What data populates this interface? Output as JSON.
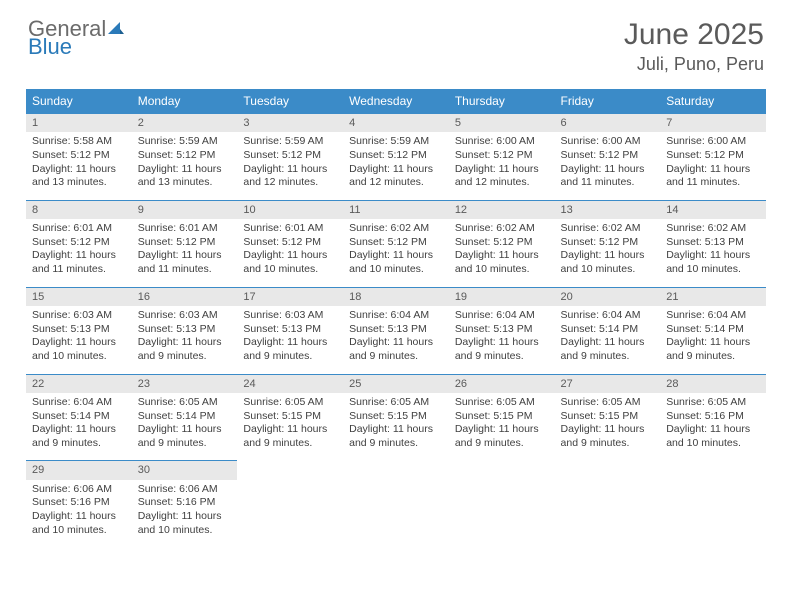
{
  "logo": {
    "text_general": "General",
    "text_blue": "Blue"
  },
  "header": {
    "title": "June 2025",
    "location": "Juli, Puno, Peru"
  },
  "colors": {
    "header_bg": "#3b8bc8",
    "header_text": "#ffffff",
    "daynum_bg": "#e8e8e8",
    "border": "#3b8bc8",
    "body_text": "#404040",
    "logo_gray": "#6b6b6b",
    "logo_blue": "#2a7ab9"
  },
  "daysOfWeek": [
    "Sunday",
    "Monday",
    "Tuesday",
    "Wednesday",
    "Thursday",
    "Friday",
    "Saturday"
  ],
  "days": [
    {
      "n": "1",
      "sunrise": "Sunrise: 5:58 AM",
      "sunset": "Sunset: 5:12 PM",
      "dl1": "Daylight: 11 hours",
      "dl2": "and 13 minutes."
    },
    {
      "n": "2",
      "sunrise": "Sunrise: 5:59 AM",
      "sunset": "Sunset: 5:12 PM",
      "dl1": "Daylight: 11 hours",
      "dl2": "and 13 minutes."
    },
    {
      "n": "3",
      "sunrise": "Sunrise: 5:59 AM",
      "sunset": "Sunset: 5:12 PM",
      "dl1": "Daylight: 11 hours",
      "dl2": "and 12 minutes."
    },
    {
      "n": "4",
      "sunrise": "Sunrise: 5:59 AM",
      "sunset": "Sunset: 5:12 PM",
      "dl1": "Daylight: 11 hours",
      "dl2": "and 12 minutes."
    },
    {
      "n": "5",
      "sunrise": "Sunrise: 6:00 AM",
      "sunset": "Sunset: 5:12 PM",
      "dl1": "Daylight: 11 hours",
      "dl2": "and 12 minutes."
    },
    {
      "n": "6",
      "sunrise": "Sunrise: 6:00 AM",
      "sunset": "Sunset: 5:12 PM",
      "dl1": "Daylight: 11 hours",
      "dl2": "and 11 minutes."
    },
    {
      "n": "7",
      "sunrise": "Sunrise: 6:00 AM",
      "sunset": "Sunset: 5:12 PM",
      "dl1": "Daylight: 11 hours",
      "dl2": "and 11 minutes."
    },
    {
      "n": "8",
      "sunrise": "Sunrise: 6:01 AM",
      "sunset": "Sunset: 5:12 PM",
      "dl1": "Daylight: 11 hours",
      "dl2": "and 11 minutes."
    },
    {
      "n": "9",
      "sunrise": "Sunrise: 6:01 AM",
      "sunset": "Sunset: 5:12 PM",
      "dl1": "Daylight: 11 hours",
      "dl2": "and 11 minutes."
    },
    {
      "n": "10",
      "sunrise": "Sunrise: 6:01 AM",
      "sunset": "Sunset: 5:12 PM",
      "dl1": "Daylight: 11 hours",
      "dl2": "and 10 minutes."
    },
    {
      "n": "11",
      "sunrise": "Sunrise: 6:02 AM",
      "sunset": "Sunset: 5:12 PM",
      "dl1": "Daylight: 11 hours",
      "dl2": "and 10 minutes."
    },
    {
      "n": "12",
      "sunrise": "Sunrise: 6:02 AM",
      "sunset": "Sunset: 5:12 PM",
      "dl1": "Daylight: 11 hours",
      "dl2": "and 10 minutes."
    },
    {
      "n": "13",
      "sunrise": "Sunrise: 6:02 AM",
      "sunset": "Sunset: 5:12 PM",
      "dl1": "Daylight: 11 hours",
      "dl2": "and 10 minutes."
    },
    {
      "n": "14",
      "sunrise": "Sunrise: 6:02 AM",
      "sunset": "Sunset: 5:13 PM",
      "dl1": "Daylight: 11 hours",
      "dl2": "and 10 minutes."
    },
    {
      "n": "15",
      "sunrise": "Sunrise: 6:03 AM",
      "sunset": "Sunset: 5:13 PM",
      "dl1": "Daylight: 11 hours",
      "dl2": "and 10 minutes."
    },
    {
      "n": "16",
      "sunrise": "Sunrise: 6:03 AM",
      "sunset": "Sunset: 5:13 PM",
      "dl1": "Daylight: 11 hours",
      "dl2": "and 9 minutes."
    },
    {
      "n": "17",
      "sunrise": "Sunrise: 6:03 AM",
      "sunset": "Sunset: 5:13 PM",
      "dl1": "Daylight: 11 hours",
      "dl2": "and 9 minutes."
    },
    {
      "n": "18",
      "sunrise": "Sunrise: 6:04 AM",
      "sunset": "Sunset: 5:13 PM",
      "dl1": "Daylight: 11 hours",
      "dl2": "and 9 minutes."
    },
    {
      "n": "19",
      "sunrise": "Sunrise: 6:04 AM",
      "sunset": "Sunset: 5:13 PM",
      "dl1": "Daylight: 11 hours",
      "dl2": "and 9 minutes."
    },
    {
      "n": "20",
      "sunrise": "Sunrise: 6:04 AM",
      "sunset": "Sunset: 5:14 PM",
      "dl1": "Daylight: 11 hours",
      "dl2": "and 9 minutes."
    },
    {
      "n": "21",
      "sunrise": "Sunrise: 6:04 AM",
      "sunset": "Sunset: 5:14 PM",
      "dl1": "Daylight: 11 hours",
      "dl2": "and 9 minutes."
    },
    {
      "n": "22",
      "sunrise": "Sunrise: 6:04 AM",
      "sunset": "Sunset: 5:14 PM",
      "dl1": "Daylight: 11 hours",
      "dl2": "and 9 minutes."
    },
    {
      "n": "23",
      "sunrise": "Sunrise: 6:05 AM",
      "sunset": "Sunset: 5:14 PM",
      "dl1": "Daylight: 11 hours",
      "dl2": "and 9 minutes."
    },
    {
      "n": "24",
      "sunrise": "Sunrise: 6:05 AM",
      "sunset": "Sunset: 5:15 PM",
      "dl1": "Daylight: 11 hours",
      "dl2": "and 9 minutes."
    },
    {
      "n": "25",
      "sunrise": "Sunrise: 6:05 AM",
      "sunset": "Sunset: 5:15 PM",
      "dl1": "Daylight: 11 hours",
      "dl2": "and 9 minutes."
    },
    {
      "n": "26",
      "sunrise": "Sunrise: 6:05 AM",
      "sunset": "Sunset: 5:15 PM",
      "dl1": "Daylight: 11 hours",
      "dl2": "and 9 minutes."
    },
    {
      "n": "27",
      "sunrise": "Sunrise: 6:05 AM",
      "sunset": "Sunset: 5:15 PM",
      "dl1": "Daylight: 11 hours",
      "dl2": "and 9 minutes."
    },
    {
      "n": "28",
      "sunrise": "Sunrise: 6:05 AM",
      "sunset": "Sunset: 5:16 PM",
      "dl1": "Daylight: 11 hours",
      "dl2": "and 10 minutes."
    },
    {
      "n": "29",
      "sunrise": "Sunrise: 6:06 AM",
      "sunset": "Sunset: 5:16 PM",
      "dl1": "Daylight: 11 hours",
      "dl2": "and 10 minutes."
    },
    {
      "n": "30",
      "sunrise": "Sunrise: 6:06 AM",
      "sunset": "Sunset: 5:16 PM",
      "dl1": "Daylight: 11 hours",
      "dl2": "and 10 minutes."
    }
  ]
}
